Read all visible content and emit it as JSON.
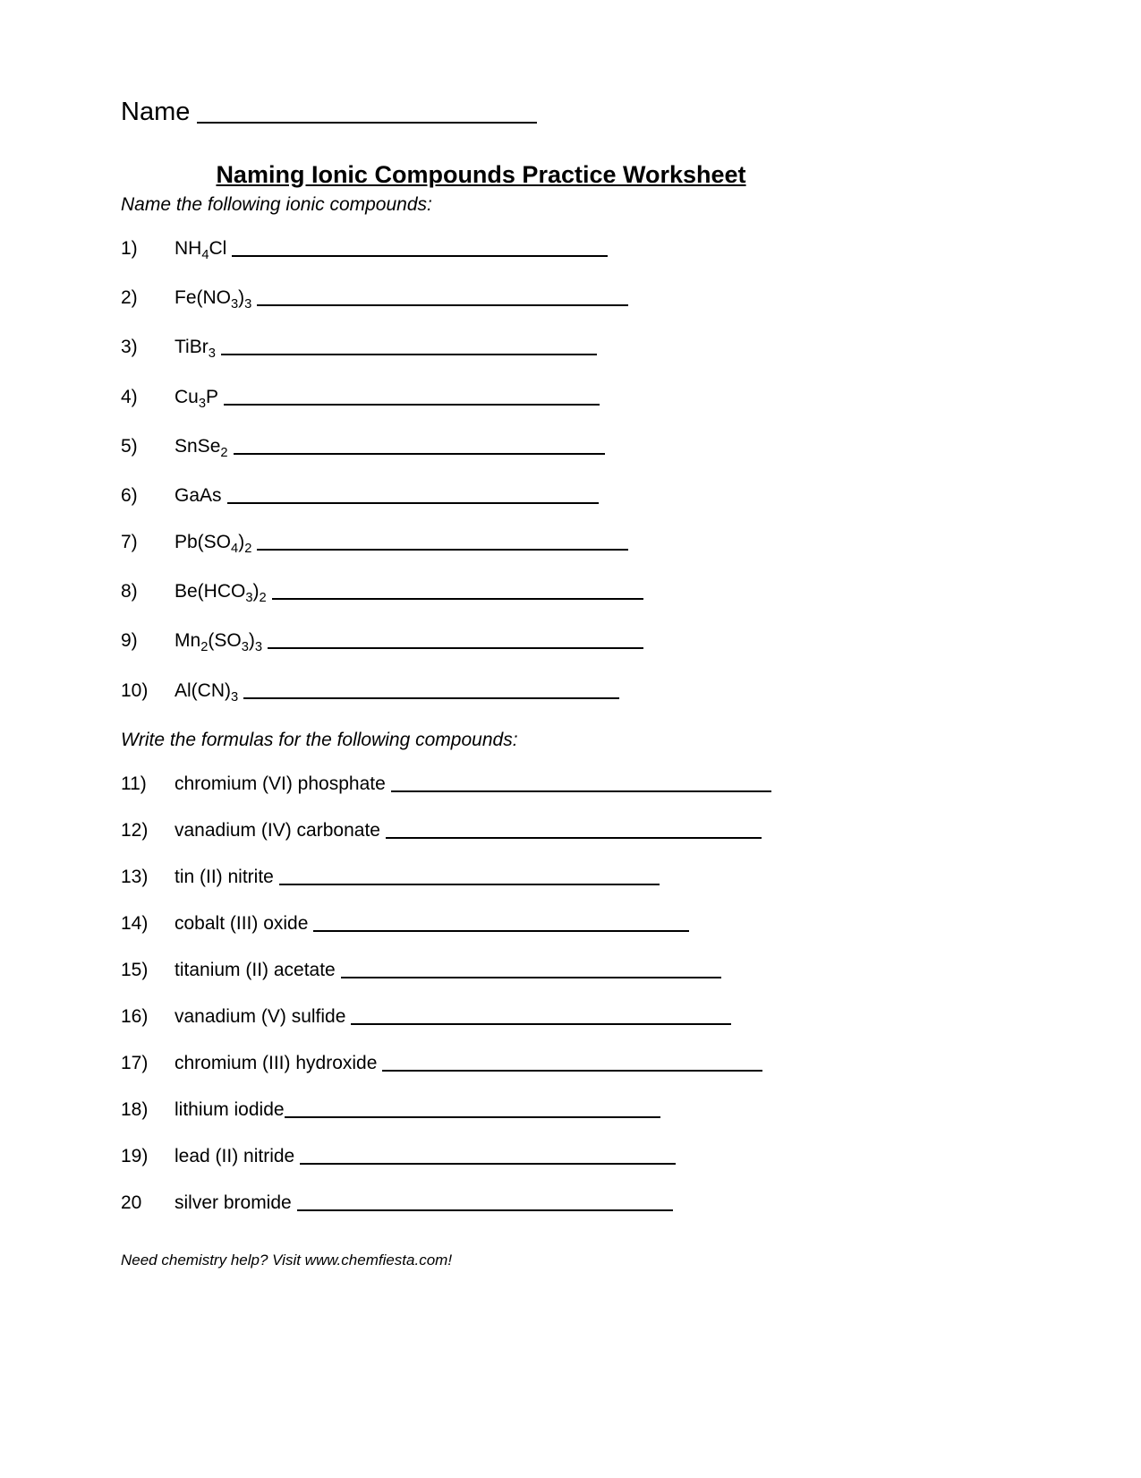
{
  "name_label": "Name",
  "name_blank_width": 380,
  "title": "Naming Ionic Compounds Practice Worksheet",
  "section1": {
    "instruction": "Name the following ionic compounds:",
    "items": [
      {
        "num": "1)",
        "parts": [
          [
            "NH",
            ""
          ],
          [
            "4",
            "sub"
          ],
          [
            "Cl",
            ""
          ]
        ],
        "line_width": 420
      },
      {
        "num": "2)",
        "parts": [
          [
            "Fe(NO",
            ""
          ],
          [
            "3",
            "sub"
          ],
          [
            ")",
            ""
          ],
          [
            "3",
            "sub"
          ]
        ],
        "line_width": 415
      },
      {
        "num": "3)",
        "parts": [
          [
            "TiBr",
            ""
          ],
          [
            "3",
            "sub"
          ]
        ],
        "line_width": 420
      },
      {
        "num": "4)",
        "parts": [
          [
            "Cu",
            ""
          ],
          [
            "3",
            "sub"
          ],
          [
            "P",
            ""
          ]
        ],
        "line_width": 420
      },
      {
        "num": "5)",
        "parts": [
          [
            "SnSe",
            ""
          ],
          [
            "2",
            "sub"
          ]
        ],
        "line_width": 415
      },
      {
        "num": "6)",
        "parts": [
          [
            "GaAs",
            ""
          ]
        ],
        "line_width": 415
      },
      {
        "num": "7)",
        "parts": [
          [
            "Pb(SO",
            ""
          ],
          [
            "4",
            "sub"
          ],
          [
            ")",
            ""
          ],
          [
            "2",
            "sub"
          ]
        ],
        "line_width": 415
      },
      {
        "num": "8)",
        "parts": [
          [
            "Be(HCO",
            ""
          ],
          [
            "3",
            "sub"
          ],
          [
            ")",
            ""
          ],
          [
            "2",
            "sub"
          ]
        ],
        "line_width": 415
      },
      {
        "num": "9)",
        "parts": [
          [
            "Mn",
            ""
          ],
          [
            "2",
            "sub"
          ],
          [
            "(SO",
            ""
          ],
          [
            "3",
            "sub"
          ],
          [
            ")",
            ""
          ],
          [
            "3",
            "sub"
          ]
        ],
        "line_width": 420
      },
      {
        "num": "10)",
        "parts": [
          [
            "Al(CN)",
            ""
          ],
          [
            "3",
            "sub"
          ]
        ],
        "line_width": 420
      }
    ]
  },
  "section2": {
    "instruction": "Write the formulas for the following compounds:",
    "items": [
      {
        "num": "11)",
        "text": "chromium (VI) phosphate",
        "line_width": 425
      },
      {
        "num": "12)",
        "text": "vanadium (IV) carbonate",
        "line_width": 420
      },
      {
        "num": "13)",
        "text": "tin (II) nitrite",
        "line_width": 425
      },
      {
        "num": "14)",
        "text": "cobalt (III) oxide",
        "line_width": 420
      },
      {
        "num": "15)",
        "text": "titanium (II) acetate",
        "line_width": 425
      },
      {
        "num": "16)",
        "text": "vanadium (V) sulfide",
        "line_width": 425
      },
      {
        "num": "17)",
        "text": "chromium (III) hydroxide",
        "line_width": 425
      },
      {
        "num": "18)",
        "text": "lithium iodide",
        "line_width": 420,
        "no_space": true
      },
      {
        "num": "19)",
        "text": "lead (II) nitride",
        "line_width": 420
      },
      {
        "num": "20",
        "text": "silver bromide",
        "line_width": 420
      }
    ]
  },
  "footer": "Need chemistry help?   Visit www.chemfiesta.com!"
}
